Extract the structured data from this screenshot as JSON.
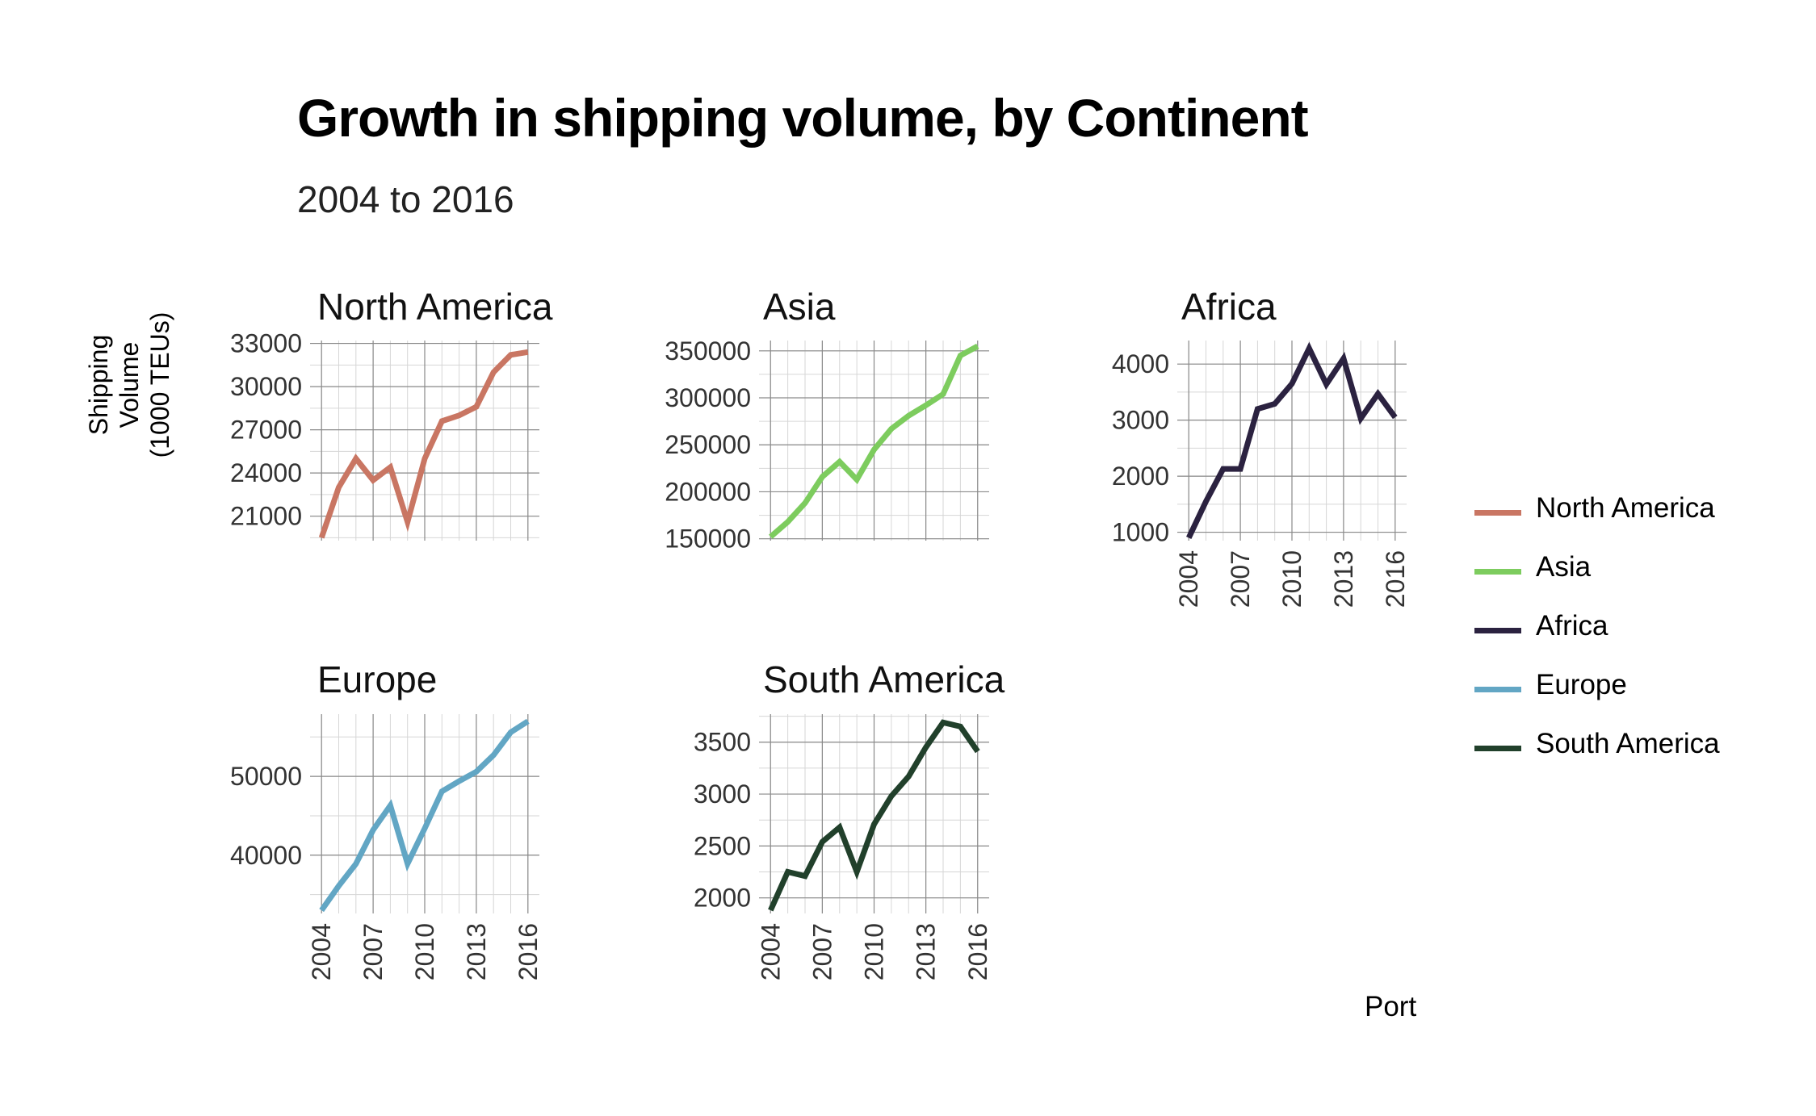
{
  "title": "Growth in shipping volume, by Continent",
  "subtitle": "2004 to 2016",
  "y_axis_label": [
    "Shipping",
    "Volume",
    "(1000 TEUs)"
  ],
  "legend_title": "Port",
  "chart_data": [
    {
      "type": "line",
      "title": "North America",
      "color": "#c97663",
      "x": [
        2004,
        2005,
        2006,
        2007,
        2008,
        2009,
        2010,
        2011,
        2012,
        2013,
        2014,
        2015,
        2016
      ],
      "values": [
        19500,
        23000,
        25000,
        23500,
        24400,
        20600,
        25000,
        27600,
        28000,
        28600,
        31000,
        32200,
        32400
      ],
      "yticks": [
        21000,
        24000,
        27000,
        30000,
        33000
      ],
      "ylim": [
        19300,
        33200
      ],
      "xticks": [
        2004,
        2007,
        2010,
        2013,
        2016
      ],
      "show_x_tick_labels": false
    },
    {
      "type": "line",
      "title": "Asia",
      "color": "#7dcc5e",
      "x": [
        2004,
        2005,
        2006,
        2007,
        2008,
        2009,
        2010,
        2011,
        2012,
        2013,
        2014,
        2015,
        2016
      ],
      "values": [
        152000,
        168000,
        188000,
        216000,
        232000,
        213000,
        245000,
        267000,
        281000,
        292000,
        304000,
        345000,
        355000
      ],
      "yticks": [
        150000,
        200000,
        250000,
        300000,
        350000
      ],
      "ylim": [
        148000,
        361000
      ],
      "xticks": [
        2004,
        2007,
        2010,
        2013,
        2016
      ],
      "show_x_tick_labels": false
    },
    {
      "type": "line",
      "title": "Africa",
      "color": "#2b2240",
      "x": [
        2004,
        2005,
        2006,
        2007,
        2008,
        2009,
        2010,
        2011,
        2012,
        2013,
        2014,
        2015,
        2016
      ],
      "values": [
        900,
        1550,
        2130,
        2130,
        3200,
        3290,
        3650,
        4280,
        3640,
        4100,
        3030,
        3470,
        3050
      ],
      "yticks": [
        1000,
        2000,
        3000,
        4000
      ],
      "ylim": [
        850,
        4420
      ],
      "xticks": [
        2004,
        2007,
        2010,
        2013,
        2016
      ],
      "show_x_tick_labels": true
    },
    {
      "type": "line",
      "title": "Europe",
      "color": "#62a6c4",
      "x": [
        2004,
        2005,
        2006,
        2007,
        2008,
        2009,
        2010,
        2011,
        2012,
        2013,
        2014,
        2015,
        2016
      ],
      "values": [
        33000,
        36100,
        38900,
        43200,
        46300,
        38900,
        43400,
        48100,
        49400,
        50600,
        52700,
        55600,
        57000
      ],
      "yticks": [
        40000,
        50000
      ],
      "ylim": [
        32600,
        57900
      ],
      "xticks": [
        2004,
        2007,
        2010,
        2013,
        2016
      ],
      "show_x_tick_labels": true
    },
    {
      "type": "line",
      "title": "South America",
      "color": "#21402b",
      "x": [
        2004,
        2005,
        2006,
        2007,
        2008,
        2009,
        2010,
        2011,
        2012,
        2013,
        2014,
        2015,
        2016
      ],
      "values": [
        1880,
        2250,
        2210,
        2540,
        2680,
        2250,
        2710,
        2980,
        3170,
        3450,
        3690,
        3650,
        3410
      ],
      "yticks": [
        2000,
        2500,
        3000,
        3500
      ],
      "ylim": [
        1850,
        3770
      ],
      "xticks": [
        2004,
        2007,
        2010,
        2013,
        2016
      ],
      "show_x_tick_labels": true
    }
  ]
}
